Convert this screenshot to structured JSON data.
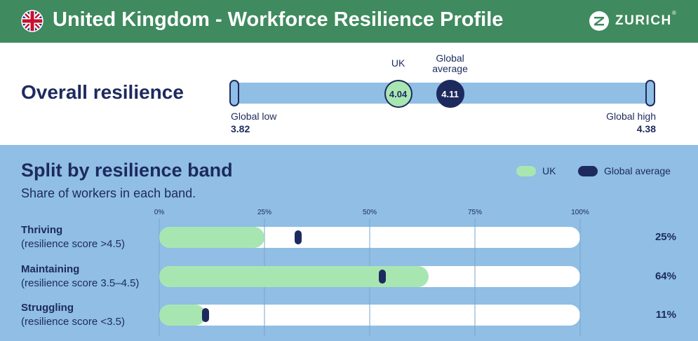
{
  "header": {
    "title": "United Kingdom - Workforce Resilience Profile",
    "brand": "ZURICH",
    "brand_mark": "®",
    "flag_icon": "uk-flag-icon",
    "logo_icon": "zurich-z-icon",
    "background_color": "#3f8a5e"
  },
  "overall": {
    "title": "Overall resilience",
    "scale_min": 3.82,
    "scale_max": 4.38,
    "low_label": "Global low",
    "low_value": "3.82",
    "high_label": "Global high",
    "high_value": "4.38",
    "uk_label": "UK",
    "uk_value": 4.04,
    "uk_value_text": "4.04",
    "global_label_line1": "Global",
    "global_label_line2": "average",
    "global_value": 4.11,
    "global_value_text": "4.11"
  },
  "colors": {
    "navy": "#1d2a5e",
    "uk_green": "#a8e6b1",
    "light_blue": "#90bee4",
    "track_white": "#ffffff",
    "grid_line": "#7aa6cc"
  },
  "chart_data": {
    "type": "bar",
    "title": "Split by resilience band",
    "subtitle": "Share of workers in each band.",
    "legend": [
      "UK",
      "Global average"
    ],
    "legend_position": "top-right",
    "xlim": [
      0,
      100
    ],
    "ticks": [
      "0%",
      "25%",
      "50%",
      "75%",
      "100%"
    ],
    "tick_values": [
      0,
      25,
      50,
      75,
      100
    ],
    "categories": [
      {
        "name": "Thriving",
        "desc": "(resilience score >4.5)",
        "uk": 25,
        "global": 33,
        "label": "25%"
      },
      {
        "name": "Maintaining",
        "desc": "(resilience score 3.5–4.5)",
        "uk": 64,
        "global": 53,
        "label": "64%"
      },
      {
        "name": "Struggling",
        "desc": "(resilience score <3.5)",
        "uk": 11,
        "global": 11,
        "label": "11%"
      }
    ],
    "grid": true
  }
}
